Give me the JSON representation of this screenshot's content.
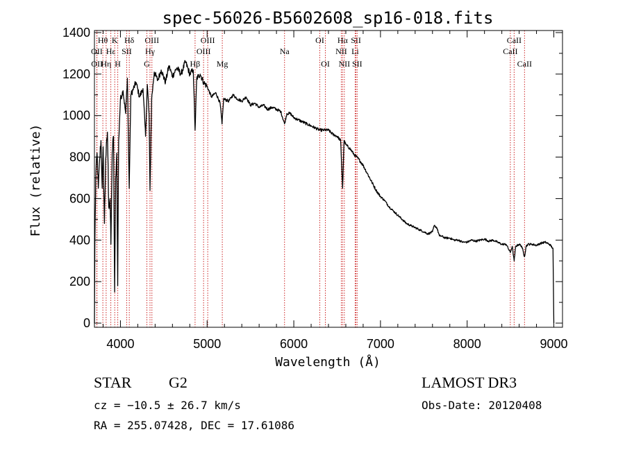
{
  "chart_data": {
    "type": "line",
    "title": "spec-56026-B5602608_sp16-018.fits",
    "xlabel": "Wavelength (Å)",
    "ylabel": "Flux (relative)",
    "xlim": [
      3700,
      9100
    ],
    "ylim": [
      -20,
      1410
    ],
    "x_ticks": [
      4000,
      5000,
      6000,
      7000,
      8000,
      9000
    ],
    "y_ticks": [
      0,
      200,
      400,
      600,
      800,
      1000,
      1200,
      1400
    ],
    "spectrum_anchors": [
      [
        3700,
        0
      ],
      [
        3705,
        380
      ],
      [
        3715,
        700
      ],
      [
        3730,
        820
      ],
      [
        3745,
        650
      ],
      [
        3760,
        790
      ],
      [
        3775,
        880
      ],
      [
        3790,
        650
      ],
      [
        3800,
        850
      ],
      [
        3815,
        480
      ],
      [
        3830,
        790
      ],
      [
        3850,
        920
      ],
      [
        3865,
        560
      ],
      [
        3880,
        600
      ],
      [
        3890,
        380
      ],
      [
        3905,
        820
      ],
      [
        3920,
        900
      ],
      [
        3933,
        150
      ],
      [
        3945,
        700
      ],
      [
        3958,
        820
      ],
      [
        3968,
        180
      ],
      [
        3980,
        880
      ],
      [
        4000,
        1080
      ],
      [
        4030,
        1120
      ],
      [
        4060,
        1010
      ],
      [
        4080,
        1180
      ],
      [
        4101,
        650
      ],
      [
        4120,
        1100
      ],
      [
        4150,
        1130
      ],
      [
        4180,
        1160
      ],
      [
        4220,
        1090
      ],
      [
        4260,
        1130
      ],
      [
        4290,
        900
      ],
      [
        4310,
        1150
      ],
      [
        4330,
        1010
      ],
      [
        4341,
        640
      ],
      [
        4360,
        1080
      ],
      [
        4390,
        1210
      ],
      [
        4430,
        1170
      ],
      [
        4470,
        1220
      ],
      [
        4520,
        1160
      ],
      [
        4560,
        1240
      ],
      [
        4600,
        1190
      ],
      [
        4650,
        1230
      ],
      [
        4700,
        1200
      ],
      [
        4750,
        1260
      ],
      [
        4800,
        1200
      ],
      [
        4840,
        1220
      ],
      [
        4861,
        930
      ],
      [
        4880,
        1180
      ],
      [
        4920,
        1200
      ],
      [
        4960,
        1160
      ],
      [
        5000,
        1140
      ],
      [
        5050,
        1090
      ],
      [
        5100,
        1110
      ],
      [
        5150,
        1060
      ],
      [
        5172,
        960
      ],
      [
        5190,
        1080
      ],
      [
        5250,
        1070
      ],
      [
        5300,
        1100
      ],
      [
        5350,
        1080
      ],
      [
        5400,
        1070
      ],
      [
        5450,
        1090
      ],
      [
        5500,
        1050
      ],
      [
        5550,
        1060
      ],
      [
        5600,
        1040
      ],
      [
        5650,
        1050
      ],
      [
        5700,
        1030
      ],
      [
        5750,
        1040
      ],
      [
        5800,
        1030
      ],
      [
        5850,
        1020
      ],
      [
        5893,
        960
      ],
      [
        5920,
        1010
      ],
      [
        5960,
        1010
      ],
      [
        6000,
        990
      ],
      [
        6050,
        980
      ],
      [
        6100,
        970
      ],
      [
        6150,
        960
      ],
      [
        6200,
        950
      ],
      [
        6250,
        940
      ],
      [
        6300,
        930
      ],
      [
        6350,
        930
      ],
      [
        6400,
        930
      ],
      [
        6450,
        910
      ],
      [
        6500,
        900
      ],
      [
        6540,
        880
      ],
      [
        6563,
        650
      ],
      [
        6580,
        880
      ],
      [
        6600,
        860
      ],
      [
        6650,
        840
      ],
      [
        6700,
        810
      ],
      [
        6750,
        790
      ],
      [
        6800,
        760
      ],
      [
        6850,
        720
      ],
      [
        6900,
        680
      ],
      [
        6950,
        640
      ],
      [
        7000,
        610
      ],
      [
        7050,
        590
      ],
      [
        7100,
        560
      ],
      [
        7150,
        540
      ],
      [
        7200,
        520
      ],
      [
        7250,
        500
      ],
      [
        7300,
        480
      ],
      [
        7350,
        470
      ],
      [
        7400,
        460
      ],
      [
        7450,
        450
      ],
      [
        7500,
        440
      ],
      [
        7550,
        430
      ],
      [
        7600,
        440
      ],
      [
        7620,
        470
      ],
      [
        7650,
        460
      ],
      [
        7680,
        420
      ],
      [
        7700,
        420
      ],
      [
        7750,
        410
      ],
      [
        7800,
        410
      ],
      [
        7850,
        400
      ],
      [
        7900,
        400
      ],
      [
        7950,
        390
      ],
      [
        8000,
        390
      ],
      [
        8050,
        400
      ],
      [
        8100,
        395
      ],
      [
        8150,
        400
      ],
      [
        8200,
        405
      ],
      [
        8250,
        395
      ],
      [
        8300,
        400
      ],
      [
        8350,
        390
      ],
      [
        8400,
        380
      ],
      [
        8450,
        380
      ],
      [
        8498,
        340
      ],
      [
        8520,
        370
      ],
      [
        8542,
        300
      ],
      [
        8560,
        370
      ],
      [
        8600,
        380
      ],
      [
        8630,
        370
      ],
      [
        8662,
        320
      ],
      [
        8680,
        370
      ],
      [
        8700,
        380
      ],
      [
        8750,
        380
      ],
      [
        8800,
        375
      ],
      [
        8850,
        385
      ],
      [
        8900,
        390
      ],
      [
        8950,
        380
      ],
      [
        8990,
        360
      ],
      [
        9000,
        0
      ]
    ],
    "line_markers": [
      {
        "label": "Hθ",
        "wavelength": 3797,
        "row": 1
      },
      {
        "label": "OII",
        "wavelength": 3727,
        "row": 2
      },
      {
        "label": "OII",
        "wavelength": 3729,
        "row": 3
      },
      {
        "label": "Hη",
        "wavelength": 3835,
        "row": 3
      },
      {
        "label": "Hε",
        "wavelength": 3889,
        "row": 2
      },
      {
        "label": "K",
        "wavelength": 3934,
        "row": 1
      },
      {
        "label": "H",
        "wavelength": 3969,
        "row": 3
      },
      {
        "label": "SII",
        "wavelength": 4072,
        "row": 2
      },
      {
        "label": "Hδ",
        "wavelength": 4102,
        "row": 1
      },
      {
        "label": "OIII",
        "wavelength": 4363,
        "row": 1
      },
      {
        "label": "Hγ",
        "wavelength": 4341,
        "row": 2
      },
      {
        "label": "G",
        "wavelength": 4305,
        "row": 3
      },
      {
        "label": "Hβ",
        "wavelength": 4861,
        "row": 3
      },
      {
        "label": "OIII",
        "wavelength": 5007,
        "row": 1
      },
      {
        "label": "OIII",
        "wavelength": 4959,
        "row": 2
      },
      {
        "label": "Mg",
        "wavelength": 5175,
        "row": 3
      },
      {
        "label": "Na",
        "wavelength": 5893,
        "row": 2
      },
      {
        "label": "OI",
        "wavelength": 6300,
        "row": 1
      },
      {
        "label": "OI",
        "wavelength": 6364,
        "row": 3
      },
      {
        "label": "Hα",
        "wavelength": 6563,
        "row": 1
      },
      {
        "label": "NII",
        "wavelength": 6548,
        "row": 2
      },
      {
        "label": "NII",
        "wavelength": 6583,
        "row": 3
      },
      {
        "label": "SII",
        "wavelength": 6717,
        "row": 1
      },
      {
        "label": "Li",
        "wavelength": 6708,
        "row": 2
      },
      {
        "label": "SII",
        "wavelength": 6731,
        "row": 3
      },
      {
        "label": "CaII",
        "wavelength": 8542,
        "row": 1
      },
      {
        "label": "CaII",
        "wavelength": 8498,
        "row": 2
      },
      {
        "label": "CaII",
        "wavelength": 8662,
        "row": 3
      }
    ]
  },
  "info": {
    "object_class": "STAR",
    "subclass": "G2",
    "survey": "LAMOST DR3",
    "redshift": "cz = −10.5 ± 26.7 km/s",
    "obs_date": "Obs-Date: 20120408",
    "coords": "RA = 255.07428, DEC =  17.61086"
  },
  "colors": {
    "spectrum": "#000000",
    "marker_line": "#cc2222",
    "axis": "#000000",
    "background": "#ffffff"
  }
}
